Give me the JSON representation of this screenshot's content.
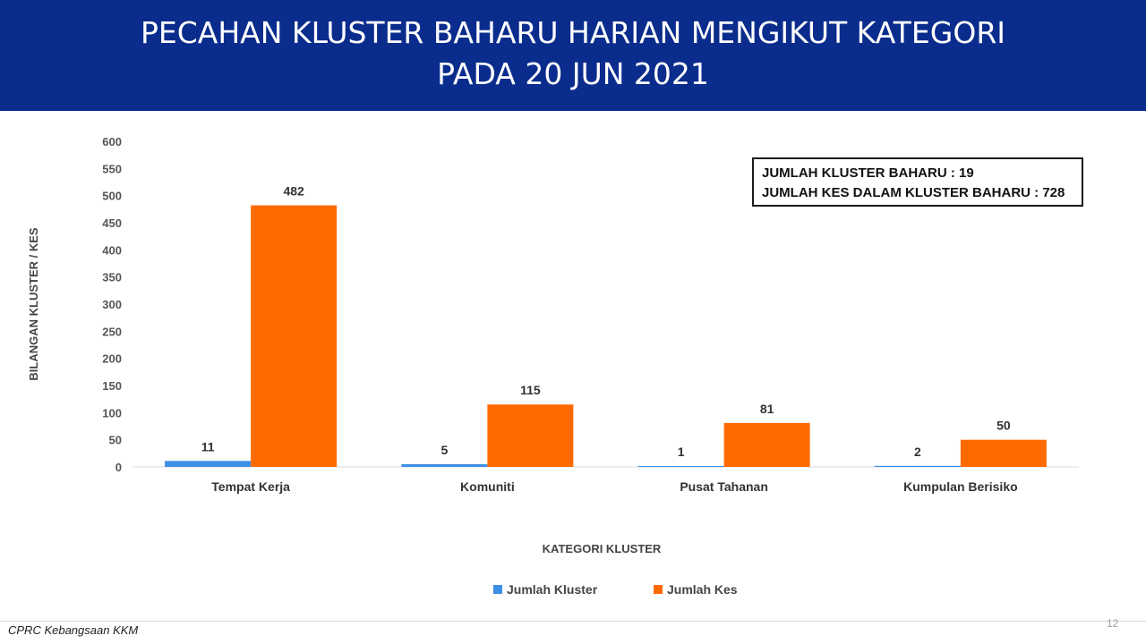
{
  "header": {
    "title_line1": "PECAHAN KLUSTER BAHARU HARIAN MENGIKUT KATEGORI",
    "title_line2": "PADA 20 JUN 2021",
    "background": "#0a2c8c"
  },
  "summary": {
    "line1": "JUMLAH KLUSTER BAHARU : 19",
    "line2": "JUMLAH KES DALAM KLUSTER BAHARU : 728"
  },
  "footer": {
    "source": "CPRC Kebangsaan KKM",
    "page_number": "12"
  },
  "chart_data": {
    "type": "bar",
    "categories": [
      "Tempat Kerja",
      "Komuniti",
      "Pusat Tahanan",
      "Kumpulan Berisiko"
    ],
    "series": [
      {
        "name": "Jumlah Kluster",
        "values": [
          11,
          5,
          1,
          2
        ],
        "color": "#3d8fe6"
      },
      {
        "name": "Jumlah Kes",
        "values": [
          482,
          115,
          81,
          50
        ],
        "color": "#ff6a00"
      }
    ],
    "xlabel": "KATEGORI KLUSTER",
    "ylabel": "BILANGAN KLUSTER / KES",
    "ylim": [
      0,
      600
    ],
    "yticks": [
      0,
      50,
      100,
      150,
      200,
      250,
      300,
      350,
      400,
      450,
      500,
      550,
      600
    ],
    "grid": false,
    "legend_position": "bottom"
  }
}
